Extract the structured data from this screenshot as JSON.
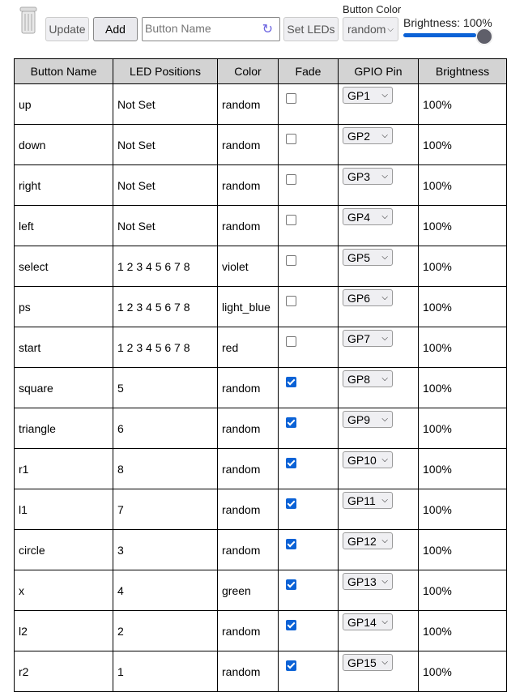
{
  "toolbar": {
    "update": "Update",
    "add": "Add",
    "name_placeholder": "Button Name",
    "set_leds": "Set LEDs",
    "color_label": "Button Color",
    "color_value": "random",
    "brightness_label": "Brightness: 100%",
    "brightness_value": 100,
    "accent": "#0b62d6"
  },
  "table": {
    "headers": [
      "Button Name",
      "LED Positions",
      "Color",
      "Fade",
      "GPIO Pin",
      "Brightness"
    ],
    "rows": [
      [
        "up",
        "Not Set",
        "random",
        false,
        "GP1",
        "100%"
      ],
      [
        "down",
        "Not Set",
        "random",
        false,
        "GP2",
        "100%"
      ],
      [
        "right",
        "Not Set",
        "random",
        false,
        "GP3",
        "100%"
      ],
      [
        "left",
        "Not Set",
        "random",
        false,
        "GP4",
        "100%"
      ],
      [
        "select",
        "1 2 3 4 5 6 7 8",
        "violet",
        false,
        "GP5",
        "100%"
      ],
      [
        "ps",
        "1 2 3 4 5 6 7 8",
        "light_blue",
        false,
        "GP6",
        "100%"
      ],
      [
        "start",
        "1 2 3 4 5 6 7 8",
        "red",
        false,
        "GP7",
        "100%"
      ],
      [
        "square",
        "5",
        "random",
        true,
        "GP8",
        "100%"
      ],
      [
        "triangle",
        "6",
        "random",
        true,
        "GP9",
        "100%"
      ],
      [
        "r1",
        "8",
        "random",
        true,
        "GP10",
        "100%"
      ],
      [
        "l1",
        "7",
        "random",
        true,
        "GP11",
        "100%"
      ],
      [
        "circle",
        "3",
        "random",
        true,
        "GP12",
        "100%"
      ],
      [
        "x",
        "4",
        "green",
        true,
        "GP13",
        "100%"
      ],
      [
        "l2",
        "2",
        "random",
        true,
        "GP14",
        "100%"
      ],
      [
        "r2",
        "1",
        "random",
        true,
        "GP15",
        "100%"
      ]
    ]
  }
}
